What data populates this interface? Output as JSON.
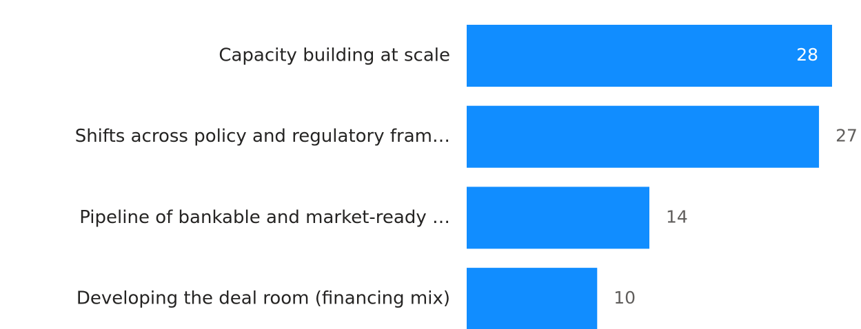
{
  "chart_data": {
    "type": "bar",
    "orientation": "horizontal",
    "categories": [
      "Capacity building at scale",
      "Shifts across policy and regulatory fram…",
      "Pipeline of bankable and market-ready …",
      "Developing the deal room (financing mix)"
    ],
    "values": [
      28,
      27,
      14,
      10
    ],
    "color": "#118DFF"
  }
}
